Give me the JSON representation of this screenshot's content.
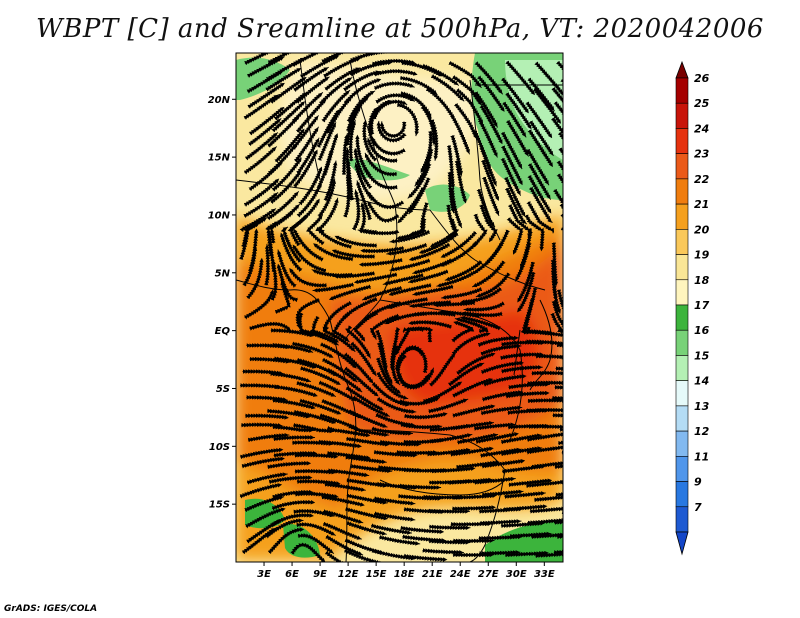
{
  "title": "WBPT [C] and Sreamline at 500hPa, VT: 2020042006",
  "footer": "GrADS: IGES/COLA",
  "map": {
    "lon_range": [
      0,
      35
    ],
    "lat_range": [
      -20,
      24
    ],
    "lat_ticks": [
      {
        "lat": 20,
        "label": "20N"
      },
      {
        "lat": 15,
        "label": "15N"
      },
      {
        "lat": 10,
        "label": "10N"
      },
      {
        "lat": 5,
        "label": "5N"
      },
      {
        "lat": 0,
        "label": "EQ"
      },
      {
        "lat": -5,
        "label": "5S"
      },
      {
        "lat": -10,
        "label": "10S"
      },
      {
        "lat": -15,
        "label": "15S"
      }
    ],
    "lon_ticks": [
      {
        "lon": 3,
        "label": "3E"
      },
      {
        "lon": 6,
        "label": "6E"
      },
      {
        "lon": 9,
        "label": "9E"
      },
      {
        "lon": 12,
        "label": "12E"
      },
      {
        "lon": 15,
        "label": "15E"
      },
      {
        "lon": 18,
        "label": "18E"
      },
      {
        "lon": 21,
        "label": "21E"
      },
      {
        "lon": 24,
        "label": "24E"
      },
      {
        "lon": 27,
        "label": "27E"
      },
      {
        "lon": 30,
        "label": "30E"
      },
      {
        "lon": 33,
        "label": "33E"
      }
    ]
  },
  "colorbar": {
    "levels": [
      {
        "label": "26",
        "color": "#a50000"
      },
      {
        "label": "25",
        "color": "#c8140a"
      },
      {
        "label": "24",
        "color": "#e6320f"
      },
      {
        "label": "23",
        "color": "#eb5a19"
      },
      {
        "label": "22",
        "color": "#f07d0f"
      },
      {
        "label": "21",
        "color": "#f5a01e"
      },
      {
        "label": "20",
        "color": "#fac85a"
      },
      {
        "label": "19",
        "color": "#fae696"
      },
      {
        "label": "18",
        "color": "#fff5be"
      },
      {
        "label": "17",
        "color": "#3cb43c"
      },
      {
        "label": "16",
        "color": "#78d278"
      },
      {
        "label": "15",
        "color": "#b4f0b4"
      },
      {
        "label": "14",
        "color": "#e6fafa"
      },
      {
        "label": "13",
        "color": "#b4dcf5"
      },
      {
        "label": "12",
        "color": "#82b9f0"
      },
      {
        "label": "11",
        "color": "#5096eb"
      },
      {
        "label": "9",
        "color": "#2878e1"
      },
      {
        "label": "7",
        "color": "#1e5ad2"
      }
    ],
    "top_color": "#780000",
    "bottom_color": "#1446c8"
  }
}
